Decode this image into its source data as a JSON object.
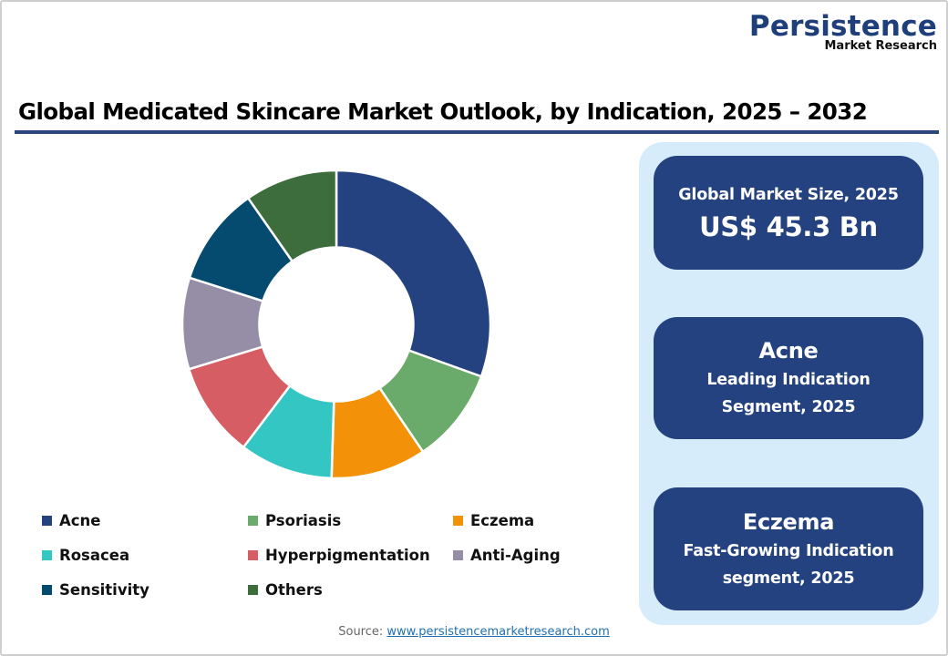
{
  "logo": {
    "main": "Persistence",
    "sub": "Market Research"
  },
  "title": "Global Medicated Skincare Market Outlook, by Indication, 2025 – 2032",
  "colors": {
    "title_rule": "#2a477a",
    "panel_bg": "#d6ecfb",
    "card_bg": "#24427f"
  },
  "chart_data": {
    "type": "pie",
    "subtype": "donut",
    "title": "Global Medicated Skincare Market Outlook, by Indication, 2025 – 2032",
    "categories": [
      "Acne",
      "Psoriasis",
      "Eczema",
      "Rosacea",
      "Hyperpigmentation",
      "Anti-Aging",
      "Sensitivity",
      "Others"
    ],
    "values": [
      30.5,
      10.0,
      10.0,
      9.8,
      10.0,
      9.6,
      10.4,
      9.7
    ],
    "unit": "% share (estimated from slice angles)",
    "colors": [
      "#24427f",
      "#6aaa6a",
      "#f39208",
      "#33c6c3",
      "#d65d63",
      "#958ea6",
      "#054b6f",
      "#3d6c3d"
    ],
    "start_angle_deg": 0,
    "direction": "clockwise",
    "inner_radius_ratio": 0.5,
    "legend_position": "bottom",
    "data_labels": false
  },
  "legend": [
    {
      "label": "Acne",
      "color": "#24427f"
    },
    {
      "label": "Psoriasis",
      "color": "#6aaa6a"
    },
    {
      "label": "Eczema",
      "color": "#f39208"
    },
    {
      "label": "Rosacea",
      "color": "#33c6c3"
    },
    {
      "label": "Hyperpigmentation",
      "color": "#d65d63"
    },
    {
      "label": "Anti-Aging",
      "color": "#958ea6"
    },
    {
      "label": "Sensitivity",
      "color": "#054b6f"
    },
    {
      "label": "Others",
      "color": "#3d6c3d"
    }
  ],
  "cards": {
    "market_size": {
      "label": "Global Market Size, 2025",
      "value": "US$ 45.3 Bn"
    },
    "leading": {
      "name": "Acne",
      "line1": "Leading Indication",
      "line2": "Segment, 2025"
    },
    "fast_growing": {
      "name": "Eczema",
      "line1": "Fast-Growing Indication",
      "line2": "segment, 2025"
    }
  },
  "source": {
    "label": "Source:",
    "link": "www.persistencemarketresearch.com"
  }
}
